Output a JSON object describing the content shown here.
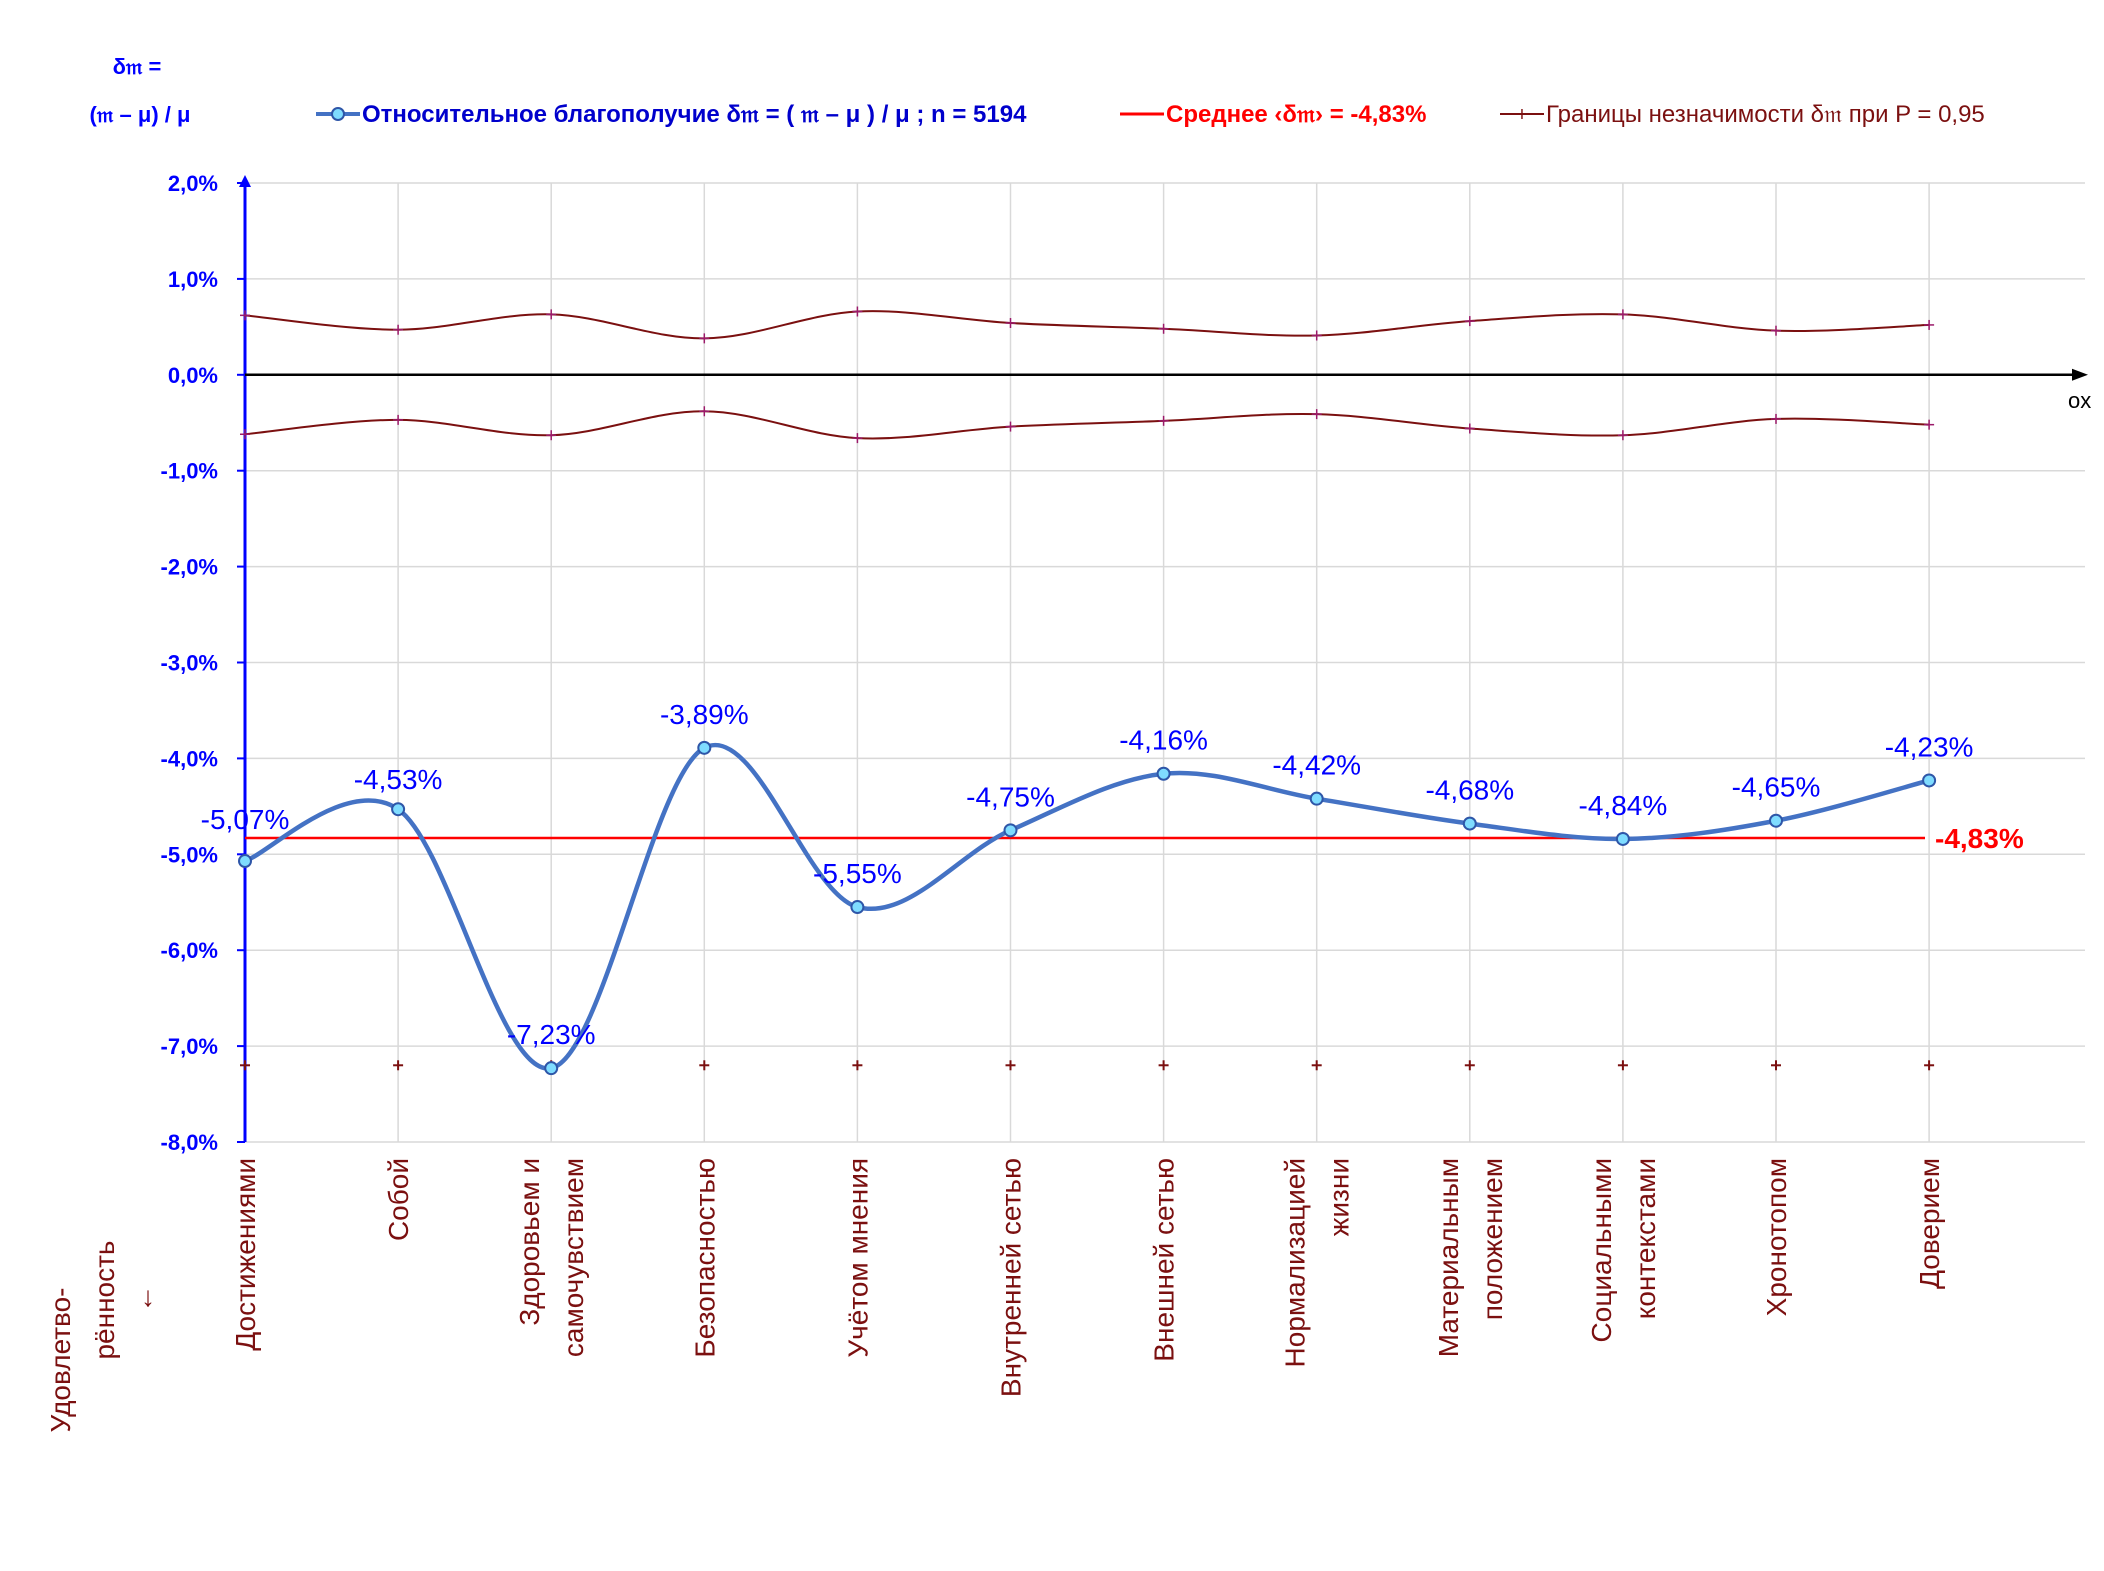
{
  "chart_data": {
    "type": "line",
    "y_axis_label_line1": "δ𝔪 =",
    "y_axis_label_line2": "(𝔪 – μ) / μ",
    "x_axis_name": "ox",
    "x_caption_line1": "Удовлетво-",
    "x_caption_line2": "рённость",
    "x_caption_arrow": "↓",
    "ylim": [
      -8.0,
      2.0
    ],
    "y_ticks": [
      "2,0%",
      "1,0%",
      "0,0%",
      "-1,0%",
      "-2,0%",
      "-3,0%",
      "-4,0%",
      "-5,0%",
      "-6,0%",
      "-7,0%",
      "-8,0%"
    ],
    "categories": [
      [
        "Достижениями"
      ],
      [
        "Собой"
      ],
      [
        "Здоровьем и",
        "самочувствием"
      ],
      [
        "Безопасностью"
      ],
      [
        "Учётом мнения"
      ],
      [
        "Внутренней сетью"
      ],
      [
        "Внешней сетью"
      ],
      [
        "Нормализацией",
        "жизни"
      ],
      [
        "Материальным",
        "положением"
      ],
      [
        "Социальными",
        "контекстами"
      ],
      [
        "Хронотопом"
      ],
      [
        "Доверием"
      ]
    ],
    "grid": true,
    "legend_position": "top",
    "series": [
      {
        "name": "Относительное благополучие δ𝔪 = ( 𝔪 – μ ) / μ ; n = 5194",
        "color": "#4472c4",
        "values": [
          -5.07,
          -4.53,
          -7.23,
          -3.89,
          -5.55,
          -4.75,
          -4.16,
          -4.42,
          -4.68,
          -4.84,
          -4.65,
          -4.23
        ],
        "labels": [
          "-5,07%",
          "-4,53%",
          "-7,23%",
          "-3,89%",
          "-5,55%",
          "-4,75%",
          "-4,16%",
          "-4,42%",
          "-4,68%",
          "-4,84%",
          "-4,65%",
          "-4,23%"
        ]
      },
      {
        "name": "Среднее ‹δ𝔪› = -4,83%",
        "color": "#ff0000",
        "value": -4.83,
        "label": "-4,83%"
      },
      {
        "name": "Границы незначимости δ𝔪 при P = 0,95",
        "color": "#7b1010",
        "upper": [
          0.62,
          0.47,
          0.63,
          0.38,
          0.66,
          0.54,
          0.48,
          0.41,
          0.56,
          0.63,
          0.46,
          0.52
        ],
        "lower": [
          -0.62,
          -0.47,
          -0.63,
          -0.38,
          -0.66,
          -0.54,
          -0.48,
          -0.41,
          -0.56,
          -0.63,
          -0.46,
          -0.52
        ],
        "baseline_markers": -7.2
      }
    ]
  }
}
